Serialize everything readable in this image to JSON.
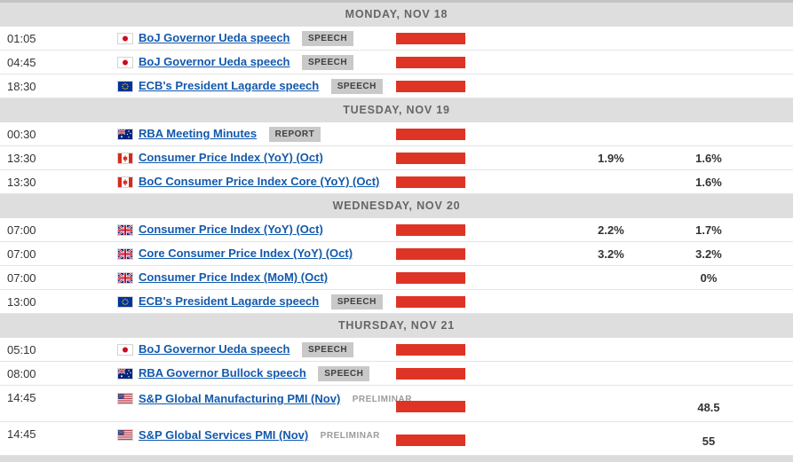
{
  "colors": {
    "impact_bar_red": "#de3425",
    "day_header_bg": "#dedede",
    "day_header_text": "#666666",
    "event_link_blue": "#1359ac",
    "badge_bg": "#c9c9c9",
    "preliminary_text": "#9b9b9b"
  },
  "sections": [
    {
      "header": "MONDAY, NOV 18",
      "rows": [
        {
          "time": "01:05",
          "flag": "japan",
          "title": "BoJ Governor Ueda speech",
          "tag": {
            "label": "SPEECH",
            "style": "boxed"
          },
          "impact_bar": true,
          "value1": "",
          "value2": ""
        },
        {
          "time": "04:45",
          "flag": "japan",
          "title": "BoJ Governor Ueda speech",
          "tag": {
            "label": "SPEECH",
            "style": "boxed"
          },
          "impact_bar": true,
          "value1": "",
          "value2": ""
        },
        {
          "time": "18:30",
          "flag": "eu",
          "title": "ECB's President Lagarde speech",
          "tag": {
            "label": "SPEECH",
            "style": "boxed"
          },
          "impact_bar": true,
          "value1": "",
          "value2": ""
        }
      ]
    },
    {
      "header": "TUESDAY, NOV 19",
      "rows": [
        {
          "time": "00:30",
          "flag": "australia",
          "title": "RBA Meeting Minutes",
          "tag": {
            "label": "REPORT",
            "style": "boxed"
          },
          "impact_bar": true,
          "value1": "",
          "value2": ""
        },
        {
          "time": "13:30",
          "flag": "canada",
          "title": "Consumer Price Index (YoY) (Oct)",
          "impact_bar": true,
          "value1": "1.9%",
          "value2": "1.6%"
        },
        {
          "time": "13:30",
          "flag": "canada",
          "title": "BoC Consumer Price Index Core (YoY) (Oct)",
          "impact_bar": true,
          "value1": "",
          "value2": "1.6%"
        }
      ]
    },
    {
      "header": "WEDNESDAY, NOV 20",
      "rows": [
        {
          "time": "07:00",
          "flag": "uk",
          "title": "Consumer Price Index (YoY) (Oct)",
          "impact_bar": true,
          "value1": "2.2%",
          "value2": "1.7%"
        },
        {
          "time": "07:00",
          "flag": "uk",
          "title": "Core Consumer Price Index (YoY) (Oct)",
          "impact_bar": true,
          "value1": "3.2%",
          "value2": "3.2%"
        },
        {
          "time": "07:00",
          "flag": "uk",
          "title": "Consumer Price Index (MoM) (Oct)",
          "impact_bar": true,
          "value1": "",
          "value2": "0%"
        },
        {
          "time": "13:00",
          "flag": "eu",
          "title": "ECB's President Lagarde speech",
          "tag": {
            "label": "SPEECH",
            "style": "boxed"
          },
          "impact_bar": true,
          "value1": "",
          "value2": ""
        }
      ]
    },
    {
      "header": "THURSDAY, NOV 21",
      "rows": [
        {
          "time": "05:10",
          "flag": "japan",
          "title": "BoJ Governor Ueda speech",
          "tag": {
            "label": "SPEECH",
            "style": "boxed"
          },
          "impact_bar": true,
          "value1": "",
          "value2": ""
        },
        {
          "time": "08:00",
          "flag": "australia",
          "title": "RBA Governor Bullock speech",
          "tag": {
            "label": "SPEECH",
            "style": "boxed"
          },
          "impact_bar": true,
          "value1": "",
          "value2": ""
        },
        {
          "time": "14:45",
          "flag": "usa",
          "title": "S&P Global Manufacturing PMI (Nov)",
          "tag": {
            "label": "PRELIMINAR",
            "style": "plain"
          },
          "impact_bar": true,
          "value1": "",
          "value2": "48.5",
          "two_line": true
        },
        {
          "time": "14:45",
          "flag": "usa",
          "title": "S&P Global Services PMI (Nov)",
          "tag": {
            "label": "PRELIMINAR",
            "style": "plain"
          },
          "impact_bar": true,
          "value1": "",
          "value2": "55",
          "two_line": true
        }
      ]
    }
  ]
}
